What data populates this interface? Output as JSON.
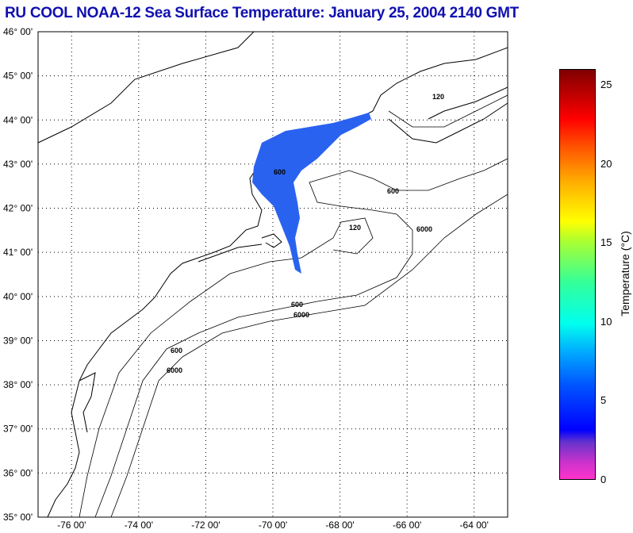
{
  "title": "RU COOL  NOAA-12  Sea Surface Temperature:  January 25, 2004 2140 GMT",
  "map": {
    "lon_range": [
      -77,
      -63
    ],
    "lat_range": [
      35,
      46
    ],
    "lat_labels": [
      "46° 00'",
      "45° 00'",
      "44° 00'",
      "43° 00'",
      "42° 00'",
      "41° 00'",
      "40° 00'",
      "39° 00'",
      "38° 00'",
      "37° 00'",
      "36° 00'",
      "35° 00'"
    ],
    "lon_labels": [
      "-76  00'",
      "-74  00'",
      "-72  00'",
      "-70  00'",
      "-68  00'",
      "-66  00'",
      "-64  00'"
    ],
    "contour_labels": [
      "600",
      "6000",
      "120"
    ]
  },
  "colorbar": {
    "label": "Temperature (°C)",
    "range": [
      0,
      26
    ],
    "ticks": [
      "0",
      "5",
      "10",
      "15",
      "20",
      "25"
    ]
  },
  "colors": {
    "title": "#1010b0",
    "sst_patch": "#2a62f0"
  }
}
